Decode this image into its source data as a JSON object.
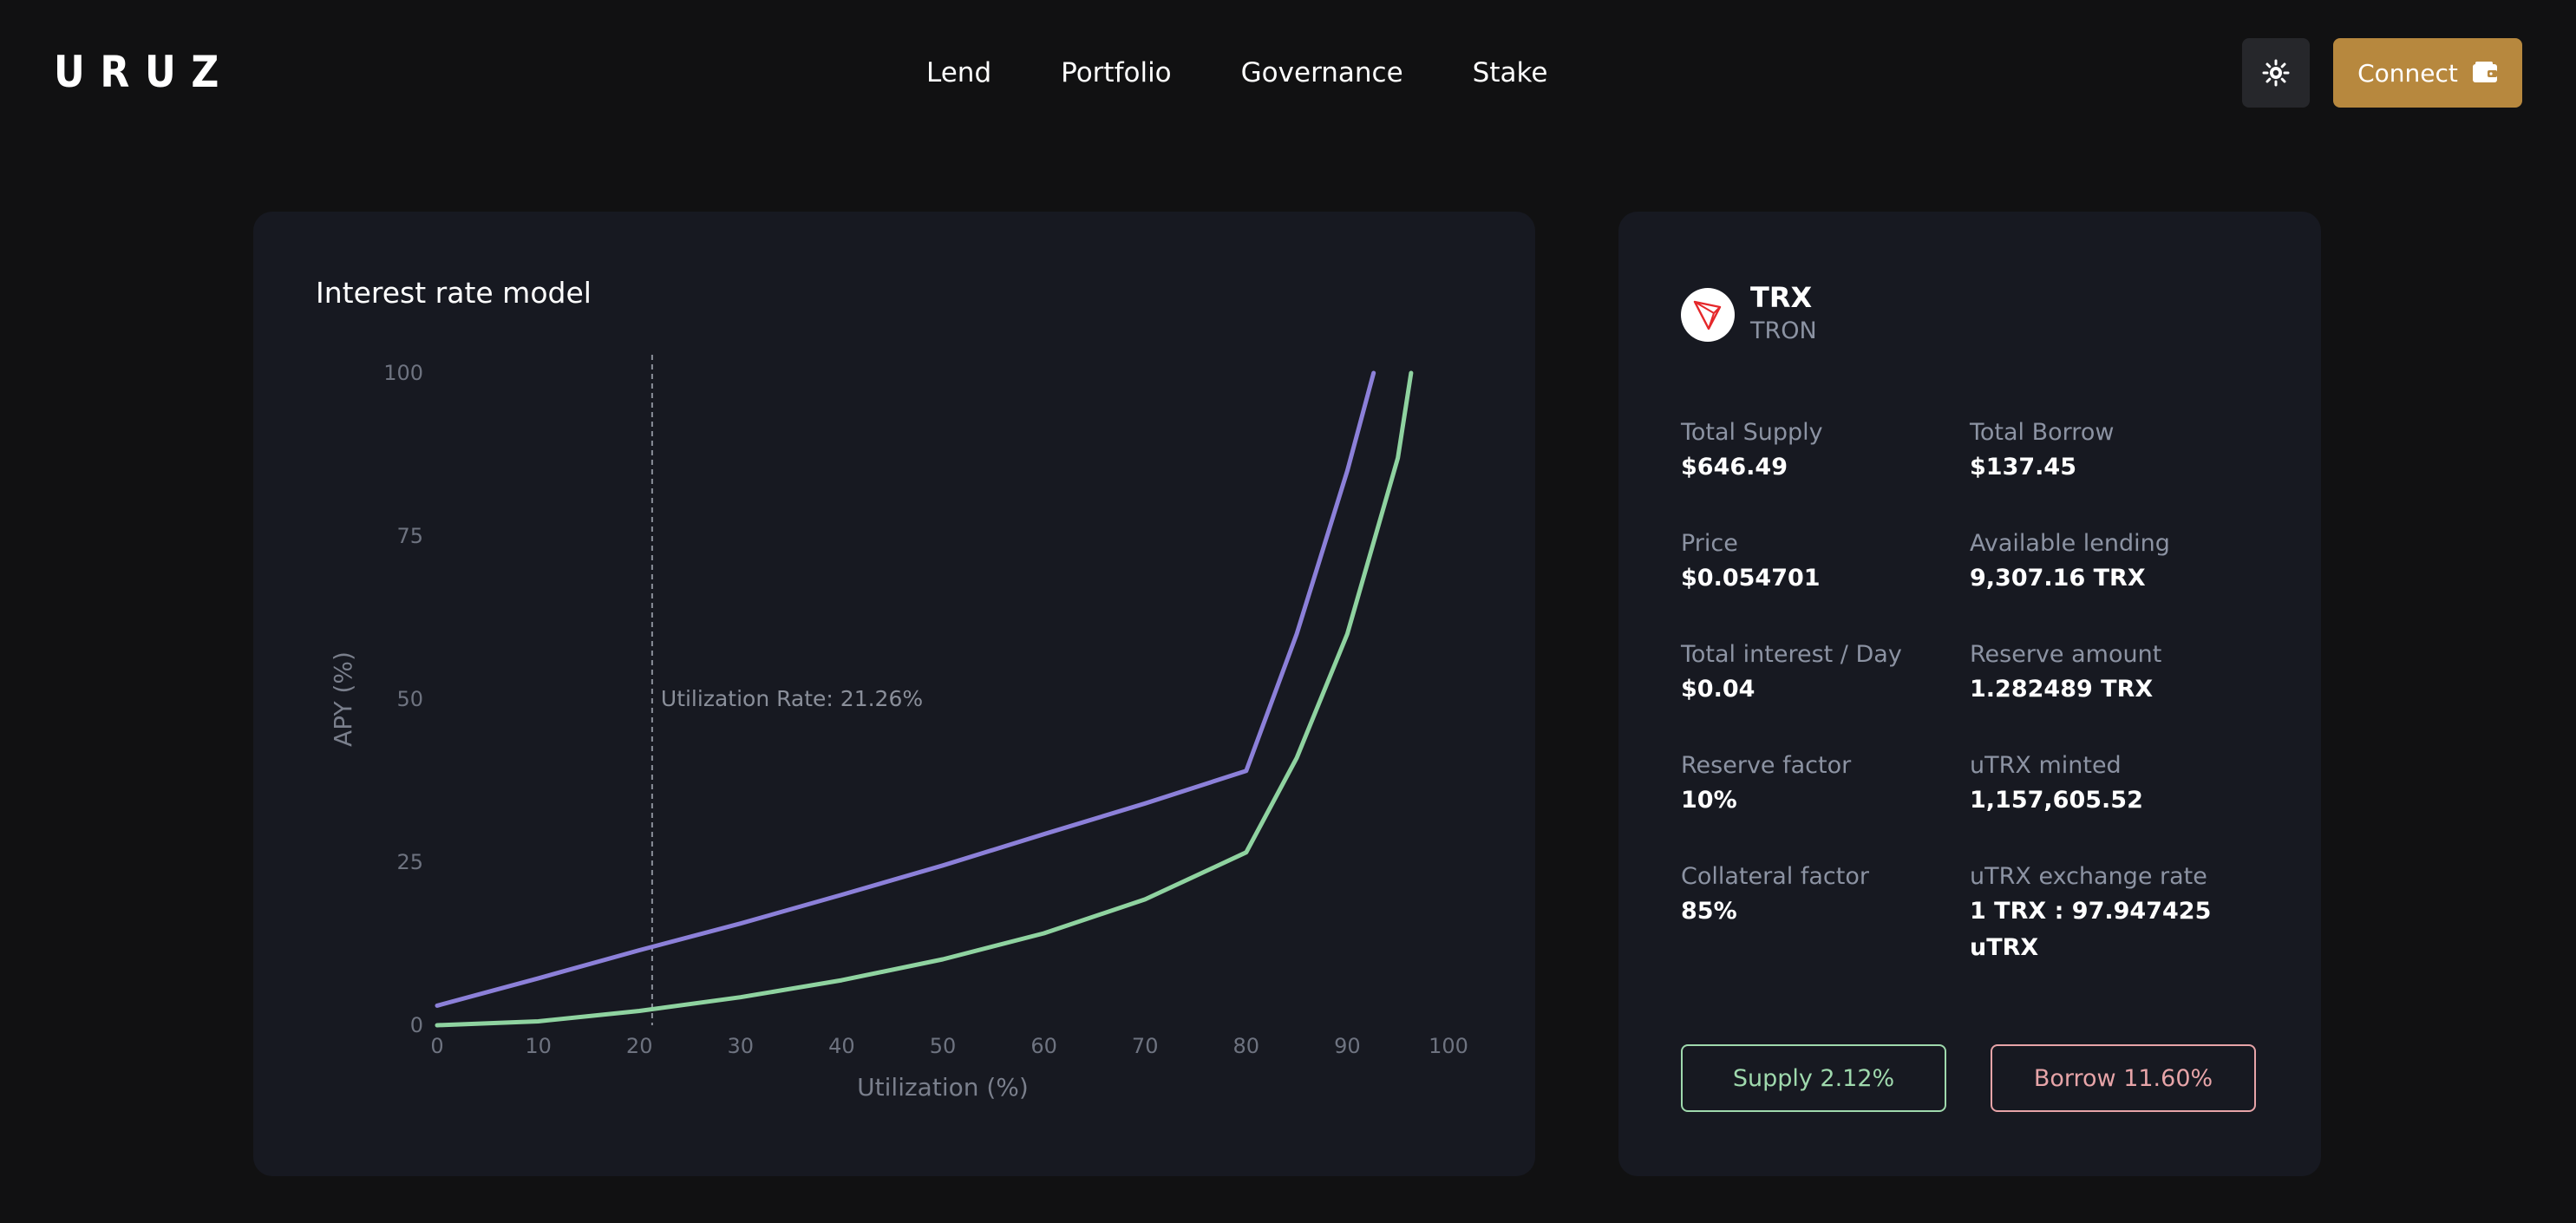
{
  "header": {
    "logo_text": "URUZ",
    "nav": [
      "Lend",
      "Portfolio",
      "Governance",
      "Stake"
    ],
    "theme_icon": "sun-icon",
    "connect_label": "Connect",
    "connect_icon": "wallet-icon",
    "accent_color": "#b7883e"
  },
  "chart": {
    "title": "Interest rate model",
    "annotation": "Utilization Rate: 21.26%"
  },
  "chart_data": {
    "type": "line",
    "title": "Interest rate model",
    "xlabel": "Utilization (%)",
    "ylabel": "APY (%)",
    "xlim": [
      0,
      100
    ],
    "ylim": [
      0,
      100
    ],
    "x_ticks": [
      0,
      10,
      20,
      30,
      40,
      50,
      60,
      70,
      80,
      90,
      100
    ],
    "y_ticks": [
      0,
      25,
      50,
      75,
      100
    ],
    "grid": false,
    "legend": "none",
    "marker_line": {
      "x": 21.26,
      "label": "Utilization Rate: 21.26%"
    },
    "series": [
      {
        "color": "#8c80d9",
        "x": [
          0,
          10,
          20,
          30,
          40,
          50,
          60,
          70,
          80,
          85,
          90,
          92.6
        ],
        "values": [
          3,
          7.2,
          11.5,
          15.6,
          20,
          24.5,
          29.3,
          34,
          39,
          60,
          85,
          100
        ]
      },
      {
        "color": "#8fd3a0",
        "x": [
          0,
          10,
          20,
          30,
          40,
          50,
          60,
          70,
          80,
          85,
          90,
          95,
          96.3
        ],
        "values": [
          0,
          0.6,
          2.2,
          4.3,
          6.9,
          10.1,
          14.1,
          19.3,
          26.5,
          41,
          60,
          87,
          100
        ]
      }
    ]
  },
  "token": {
    "symbol": "TRX",
    "name": "TRON",
    "icon": "tron-icon"
  },
  "stats": [
    {
      "label": "Total Supply",
      "value": "$646.49"
    },
    {
      "label": "Total Borrow",
      "value": "$137.45"
    },
    {
      "label": "Price",
      "value": "$0.054701"
    },
    {
      "label": "Available lending",
      "value": "9,307.16 TRX"
    },
    {
      "label": "Total interest / Day",
      "value": "$0.04"
    },
    {
      "label": "Reserve amount",
      "value": "1.282489 TRX"
    },
    {
      "label": "Reserve factor",
      "value": "10%"
    },
    {
      "label": "uTRX minted",
      "value": "1,157,605.52"
    },
    {
      "label": "Collateral factor",
      "value": "85%"
    },
    {
      "label": "uTRX exchange rate",
      "value": "1 TRX : 97.947425 uTRX"
    }
  ],
  "actions": {
    "supply_label": "Supply 2.12%",
    "borrow_label": "Borrow 11.60%",
    "supply_color": "#9fd9ad",
    "borrow_color": "#e7a4a8"
  }
}
